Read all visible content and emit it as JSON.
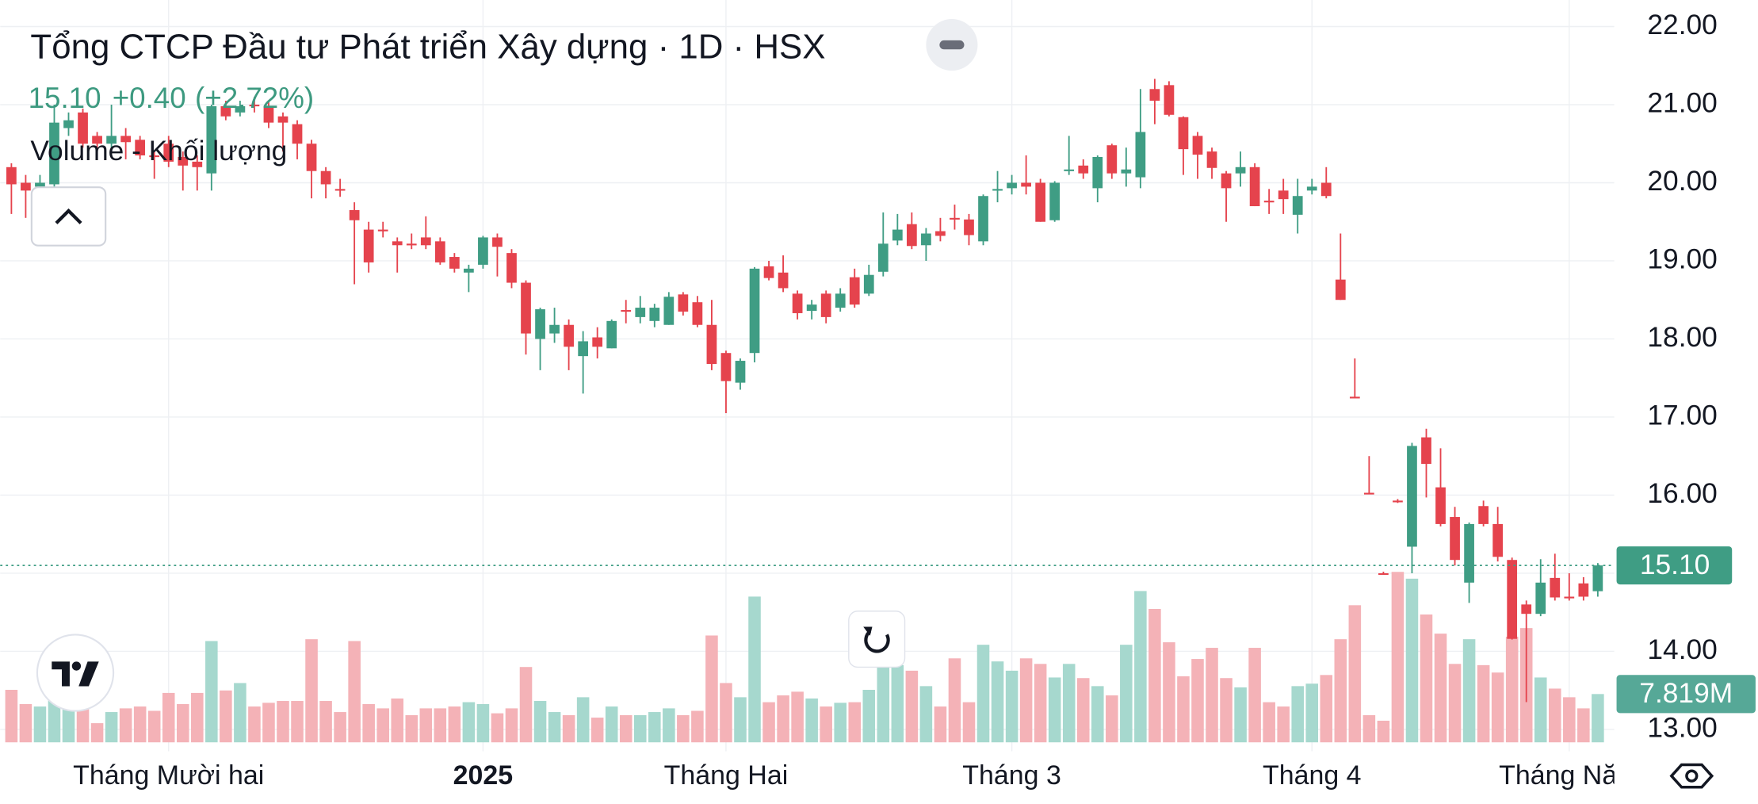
{
  "chart_data": [
    {
      "type": "candlestick",
      "title": "Tổng CTCP Đầu tư Phát triển Xây dựng · 1D · HSX",
      "change": "+0.40",
      "change_percent": "(+2.72%)",
      "last_price": {
        "value": 15.1,
        "label": "15.10"
      },
      "up_color": "#3f9d84",
      "down_color": "#e5434d",
      "grid": true,
      "ylim": [
        12.72,
        22.34
      ],
      "yticks": [
        {
          "value": 13,
          "label": "13.00"
        },
        {
          "value": 14,
          "label": "14.00"
        },
        {
          "value": 15,
          "label": "15.00"
        },
        {
          "value": 16,
          "label": "16.00"
        },
        {
          "value": 17,
          "label": "17.00"
        },
        {
          "value": 18,
          "label": "18.00"
        },
        {
          "value": 19,
          "label": "19.00"
        },
        {
          "value": 20,
          "label": "20.00"
        },
        {
          "value": 21,
          "label": "21.00"
        },
        {
          "value": 22,
          "label": "22.00"
        }
      ],
      "categories": [
        null,
        null,
        null,
        null,
        null,
        null,
        null,
        null,
        null,
        null,
        null,
        "Tháng Mười hai",
        null,
        null,
        null,
        null,
        null,
        null,
        null,
        null,
        null,
        null,
        null,
        null,
        null,
        null,
        null,
        null,
        null,
        null,
        null,
        null,
        null,
        "2025",
        null,
        null,
        null,
        null,
        null,
        null,
        null,
        null,
        null,
        null,
        null,
        null,
        null,
        null,
        null,
        null,
        "Tháng Hai",
        null,
        null,
        null,
        null,
        null,
        null,
        null,
        null,
        null,
        null,
        null,
        null,
        null,
        null,
        null,
        null,
        null,
        null,
        null,
        "Tháng 3",
        null,
        null,
        null,
        null,
        null,
        null,
        null,
        null,
        null,
        null,
        null,
        null,
        null,
        null,
        null,
        null,
        null,
        null,
        null,
        null,
        "Tháng 4",
        null,
        null,
        null,
        null,
        null,
        null,
        null,
        null,
        null,
        null,
        null,
        null,
        null,
        null,
        null,
        null,
        null,
        "Tháng Năm",
        null,
        null
      ],
      "open": [
        20.2,
        20.0,
        19.95,
        19.98,
        20.7,
        20.9,
        20.6,
        20.5,
        20.6,
        20.55,
        20.35,
        20.5,
        20.33,
        20.27,
        20.12,
        20.98,
        20.9,
        21.0,
        20.98,
        20.85,
        20.75,
        20.5,
        20.15,
        19.92,
        19.65,
        19.4,
        19.4,
        19.25,
        19.22,
        19.3,
        19.25,
        19.05,
        18.85,
        18.95,
        19.3,
        19.1,
        18.72,
        18.0,
        18.07,
        18.18,
        17.78,
        18.02,
        17.88,
        18.37,
        18.28,
        18.23,
        18.18,
        18.57,
        18.47,
        18.18,
        17.82,
        17.44,
        17.82,
        18.93,
        18.85,
        18.58,
        18.36,
        18.58,
        18.4,
        18.79,
        18.58,
        18.86,
        19.26,
        19.47,
        19.2,
        19.38,
        19.55,
        19.53,
        19.25,
        19.9,
        19.93,
        20.0,
        20.0,
        19.52,
        20.15,
        20.22,
        19.93,
        20.48,
        20.12,
        20.07,
        21.2,
        21.25,
        20.84,
        20.6,
        20.4,
        20.12,
        20.12,
        20.2,
        19.77,
        19.9,
        19.59,
        19.9,
        20.0,
        18.76,
        17.26,
        16.03,
        15.0,
        15.93,
        15.34,
        16.74,
        16.1,
        15.72,
        14.88,
        15.86,
        15.63,
        15.17,
        14.6,
        14.48,
        14.94,
        14.7,
        14.87,
        14.77
      ],
      "high": [
        20.25,
        20.1,
        20.1,
        21.0,
        20.9,
        20.95,
        20.65,
        21.0,
        20.7,
        20.6,
        20.4,
        20.6,
        20.4,
        20.35,
        21.0,
        21.05,
        21.05,
        21.1,
        21.05,
        20.9,
        20.8,
        20.55,
        20.2,
        20.05,
        19.75,
        19.5,
        19.5,
        19.3,
        19.35,
        19.57,
        19.3,
        19.1,
        18.95,
        19.32,
        19.35,
        19.15,
        18.75,
        18.4,
        18.4,
        18.25,
        18.1,
        18.15,
        18.25,
        18.5,
        18.55,
        18.45,
        18.6,
        18.6,
        18.55,
        18.5,
        17.85,
        17.75,
        18.92,
        19.0,
        19.07,
        18.62,
        18.5,
        18.62,
        18.65,
        18.9,
        18.95,
        19.62,
        19.6,
        19.62,
        19.42,
        19.55,
        19.72,
        19.6,
        19.85,
        20.15,
        20.1,
        20.35,
        20.05,
        20.02,
        20.6,
        20.3,
        20.35,
        20.5,
        20.45,
        21.2,
        21.33,
        21.3,
        20.85,
        20.65,
        20.45,
        20.15,
        20.4,
        20.25,
        19.92,
        20.05,
        20.05,
        20.05,
        20.2,
        19.35,
        17.75,
        16.5,
        15.02,
        15.95,
        16.67,
        16.85,
        16.6,
        15.85,
        15.65,
        15.93,
        15.85,
        15.2,
        14.65,
        15.18,
        15.25,
        15.0,
        14.95,
        15.13
      ],
      "low": [
        19.6,
        19.55,
        19.9,
        19.9,
        20.6,
        20.45,
        20.4,
        20.4,
        20.3,
        20.3,
        20.05,
        20.2,
        19.9,
        19.9,
        19.9,
        20.8,
        20.85,
        20.9,
        20.7,
        20.4,
        20.3,
        19.8,
        19.8,
        19.82,
        18.7,
        18.85,
        19.3,
        18.85,
        19.15,
        19.15,
        18.95,
        18.85,
        18.6,
        18.9,
        18.8,
        18.65,
        17.8,
        17.6,
        17.95,
        17.6,
        17.3,
        17.75,
        17.88,
        18.2,
        18.2,
        18.15,
        18.18,
        18.3,
        18.15,
        17.6,
        17.05,
        17.35,
        17.7,
        18.75,
        18.6,
        18.25,
        18.25,
        18.2,
        18.35,
        18.4,
        18.55,
        18.8,
        19.2,
        19.15,
        19.0,
        19.25,
        19.4,
        19.2,
        19.2,
        19.75,
        19.85,
        19.85,
        19.5,
        19.5,
        20.1,
        20.05,
        19.75,
        20.05,
        19.95,
        19.93,
        20.75,
        20.85,
        20.1,
        20.05,
        20.05,
        19.5,
        19.95,
        19.7,
        19.6,
        19.6,
        19.35,
        19.85,
        19.8,
        18.5,
        17.24,
        16.02,
        14.98,
        15.9,
        15.0,
        15.97,
        15.6,
        15.1,
        14.62,
        15.6,
        15.15,
        14.15,
        13.35,
        14.45,
        14.65,
        14.65,
        14.65,
        14.7
      ],
      "close": [
        19.98,
        19.9,
        20.0,
        20.77,
        20.8,
        20.5,
        20.5,
        20.6,
        20.52,
        20.35,
        20.33,
        20.27,
        20.22,
        20.2,
        20.98,
        20.85,
        20.98,
        20.98,
        20.77,
        20.77,
        20.5,
        20.15,
        19.98,
        19.9,
        19.52,
        18.98,
        19.38,
        19.2,
        19.2,
        19.2,
        18.98,
        18.9,
        18.9,
        19.3,
        19.18,
        18.72,
        18.07,
        18.38,
        18.18,
        17.9,
        17.97,
        17.9,
        18.23,
        18.35,
        18.4,
        18.4,
        18.54,
        18.35,
        18.18,
        17.68,
        17.46,
        17.72,
        18.9,
        18.78,
        18.65,
        18.33,
        18.44,
        18.28,
        18.58,
        18.44,
        18.82,
        19.22,
        19.4,
        19.19,
        19.35,
        19.32,
        19.53,
        19.33,
        19.83,
        19.92,
        20.0,
        19.95,
        19.5,
        20.0,
        20.17,
        20.12,
        20.33,
        20.12,
        20.17,
        20.65,
        21.05,
        20.87,
        20.43,
        20.36,
        20.19,
        19.93,
        20.2,
        19.7,
        19.75,
        19.79,
        19.83,
        19.95,
        19.83,
        18.5,
        17.24,
        16.02,
        14.98,
        15.92,
        16.63,
        16.4,
        15.63,
        15.17,
        15.63,
        15.63,
        15.21,
        14.16,
        14.48,
        14.88,
        14.69,
        14.69,
        14.7,
        15.1
      ]
    },
    {
      "type": "bar",
      "title": "Volume - Khối lượng",
      "up_color": "#a6d8ce",
      "down_color": "#f4b2b7",
      "values": [
        8.5,
        6.2,
        5.8,
        8.0,
        5.5,
        7.6,
        3.1,
        4.9,
        5.5,
        5.8,
        5.1,
        8.0,
        6.2,
        8.0,
        16.4,
        8.4,
        9.6,
        5.8,
        6.4,
        6.7,
        6.7,
        16.7,
        6.7,
        4.9,
        16.4,
        6.2,
        5.5,
        7.1,
        4.4,
        5.5,
        5.5,
        5.8,
        6.5,
        6.2,
        4.7,
        5.5,
        12.2,
        6.7,
        4.9,
        4.4,
        7.3,
        4.0,
        5.8,
        4.4,
        4.4,
        4.9,
        5.5,
        4.4,
        5.1,
        17.3,
        9.6,
        7.3,
        23.6,
        6.5,
        7.6,
        8.2,
        7.1,
        5.8,
        6.4,
        6.5,
        8.5,
        13.1,
        12.5,
        11.6,
        9.1,
        5.8,
        13.6,
        6.5,
        15.8,
        13.1,
        11.6,
        13.6,
        12.7,
        10.5,
        12.7,
        10.4,
        9.1,
        7.6,
        15.8,
        24.5,
        21.6,
        16.2,
        10.7,
        13.5,
        15.3,
        10.4,
        8.9,
        15.3,
        6.5,
        5.8,
        9.1,
        9.5,
        10.9,
        16.7,
        22.2,
        4.4,
        3.5,
        27.6,
        26.5,
        20.7,
        17.6,
        12.7,
        16.7,
        12.5,
        11.3,
        17.1,
        18.5,
        10.5,
        8.7,
        7.3,
        5.5,
        7.819
      ],
      "value_labels": {
        "111": "7.819M"
      }
    }
  ]
}
